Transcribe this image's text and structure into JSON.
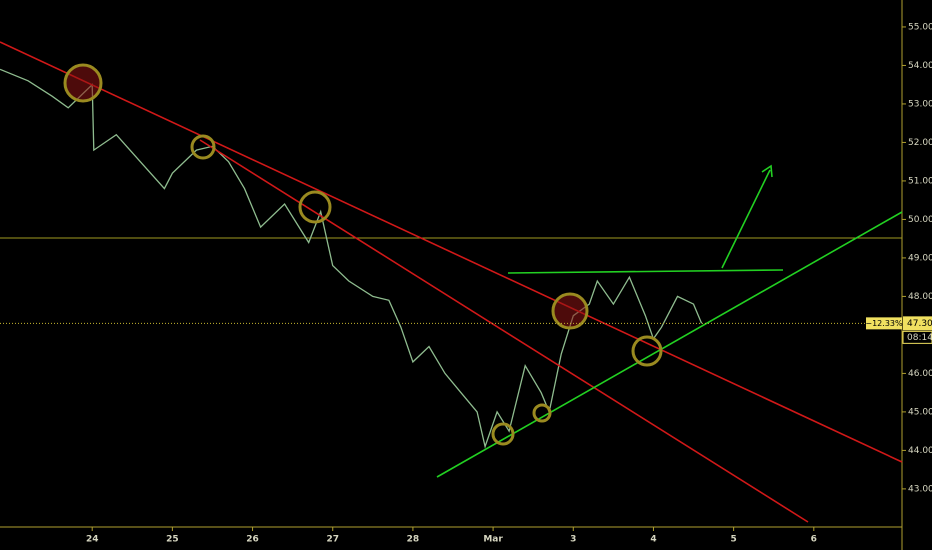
{
  "chart_data": {
    "type": "line",
    "x": [
      -1.15,
      -0.8,
      -0.5,
      -0.3,
      -0.1,
      0,
      0.02,
      0.3,
      0.6,
      0.9,
      1.0,
      1.3,
      1.5,
      1.7,
      1.9,
      2.1,
      2.4,
      2.7,
      2.85,
      3.0,
      3.2,
      3.5,
      3.7,
      3.85,
      4.0,
      4.2,
      4.4,
      4.6,
      4.8,
      4.9,
      5.05,
      5.2,
      5.4,
      5.6,
      5.7,
      5.85,
      6.0,
      6.2,
      6.3,
      6.5,
      6.7,
      6.9,
      7.0,
      7.1,
      7.3,
      7.5,
      7.6
    ],
    "values": [
      53.9,
      53.6,
      53.2,
      52.9,
      53.3,
      53.5,
      51.8,
      52.2,
      51.5,
      50.8,
      51.2,
      51.8,
      51.9,
      51.5,
      50.8,
      49.8,
      50.4,
      49.4,
      50.2,
      48.8,
      48.4,
      48.0,
      47.9,
      47.2,
      46.3,
      46.7,
      46.0,
      45.5,
      45.0,
      44.1,
      45.0,
      44.5,
      46.2,
      45.5,
      45.0,
      46.5,
      47.5,
      47.8,
      48.4,
      47.8,
      48.5,
      47.5,
      46.9,
      47.2,
      48.0,
      47.8,
      47.3
    ],
    "color": "#8fbc8f",
    "xlim": [
      -1.15,
      10.1
    ],
    "xticks": [
      {
        "value": 0,
        "label": "24"
      },
      {
        "value": 1,
        "label": "25"
      },
      {
        "value": 2,
        "label": "26"
      },
      {
        "value": 3,
        "label": "27"
      },
      {
        "value": 4,
        "label": "28"
      },
      {
        "value": 5,
        "label": "Mar"
      },
      {
        "value": 6,
        "label": "3"
      },
      {
        "value": 7,
        "label": "4"
      },
      {
        "value": 8,
        "label": "5"
      },
      {
        "value": 9,
        "label": "6"
      }
    ],
    "ylim": [
      42.01,
      55.7
    ],
    "yticks": [
      {
        "value": 55,
        "label": "55.00"
      },
      {
        "value": 54,
        "label": "54.00"
      },
      {
        "value": 53,
        "label": "53.00"
      },
      {
        "value": 52,
        "label": "52.00"
      },
      {
        "value": 51,
        "label": "51.00"
      },
      {
        "value": 50,
        "label": "50.00"
      },
      {
        "value": 49,
        "label": "49.00"
      },
      {
        "value": 48,
        "label": "48.00"
      },
      {
        "value": 46,
        "label": "46.00"
      },
      {
        "value": 45,
        "label": "45.00"
      },
      {
        "value": 44,
        "label": "44.00"
      },
      {
        "value": 43,
        "label": "43.00"
      }
    ],
    "last_price": {
      "value": 47.3,
      "label": "47.30"
    },
    "change_label": "−12.33%",
    "countdown": "08:14"
  }
}
